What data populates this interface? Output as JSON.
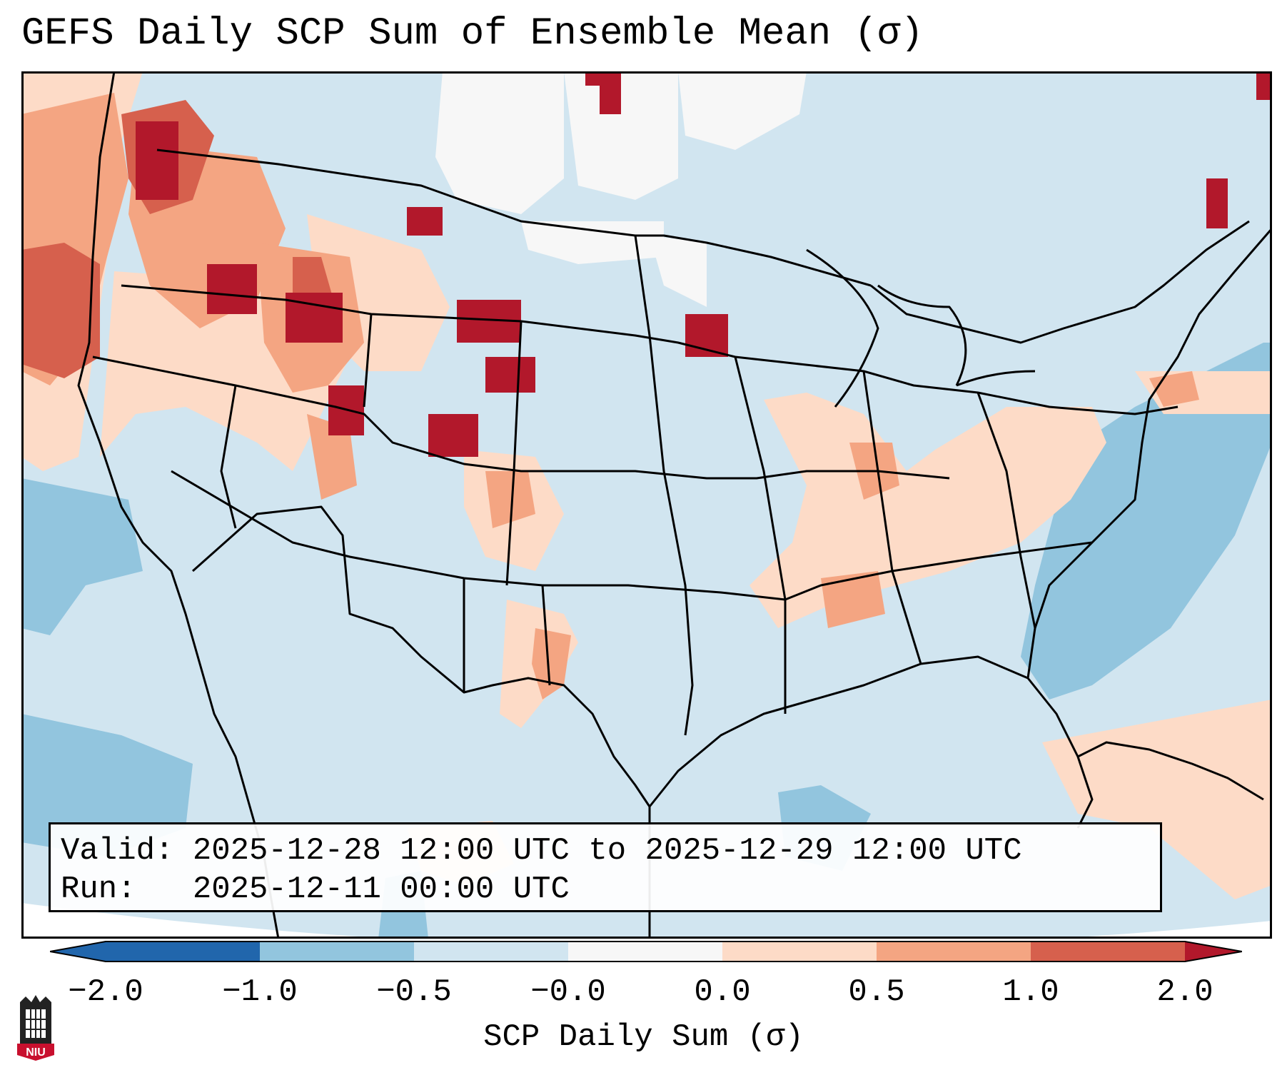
{
  "title": "GEFS Daily SCP Sum of Ensemble Mean (σ)",
  "info": {
    "valid_line": "Valid: 2025-12-28 12:00 UTC to 2025-12-29 12:00 UTC",
    "run_line": "Run:   2025-12-11 00:00 UTC"
  },
  "colorbar": {
    "label": "SCP Daily Sum (σ)",
    "ticks": [
      "−2.0",
      "−1.0",
      "−0.5",
      "−0.0",
      "0.0",
      "0.5",
      "1.0",
      "2.0"
    ],
    "colors": [
      "#2166ac",
      "#92c5de",
      "#d1e5f0",
      "#f7f7f7",
      "#fddbc7",
      "#f4a582",
      "#d6604d",
      "#b2182b"
    ],
    "under_color": "#2166ac",
    "over_color": "#b2182b"
  },
  "map": {
    "region": "Contiguous United States",
    "background_color": "#d1e5f0"
  },
  "logo": {
    "text": "NIU"
  }
}
